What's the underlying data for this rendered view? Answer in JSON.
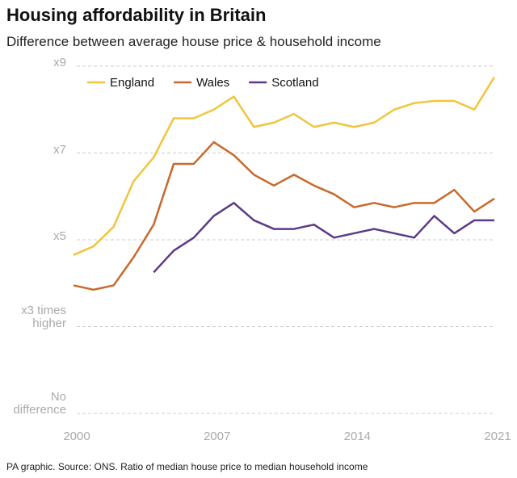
{
  "chart_data": {
    "type": "line",
    "title": "Housing affordability in Britain",
    "subtitle": "Difference between average house price & household income",
    "source": "PA graphic. Source: ONS. Ratio of median house price to median household income",
    "x": [
      2000,
      2001,
      2002,
      2003,
      2004,
      2005,
      2006,
      2007,
      2008,
      2009,
      2010,
      2011,
      2012,
      2013,
      2014,
      2015,
      2016,
      2017,
      2018,
      2019,
      2020,
      2021
    ],
    "series": [
      {
        "name": "England",
        "color": "#f0c53d",
        "values": [
          4.65,
          4.85,
          5.3,
          6.35,
          6.9,
          7.8,
          7.8,
          8.0,
          8.3,
          7.6,
          7.7,
          7.9,
          7.6,
          7.7,
          7.6,
          7.7,
          8.0,
          8.15,
          8.2,
          8.2,
          8.0,
          8.75
        ]
      },
      {
        "name": "Wales",
        "color": "#c9692b",
        "values": [
          3.95,
          3.85,
          3.95,
          4.6,
          5.35,
          6.75,
          6.75,
          7.25,
          6.95,
          6.5,
          6.25,
          6.5,
          6.25,
          6.05,
          5.75,
          5.85,
          5.75,
          5.85,
          5.85,
          6.15,
          5.65,
          5.95
        ]
      },
      {
        "name": "Scotland",
        "color": "#5b3a87",
        "values": [
          null,
          null,
          null,
          null,
          4.25,
          4.75,
          5.05,
          5.55,
          5.85,
          5.45,
          5.25,
          5.25,
          5.35,
          5.05,
          5.15,
          5.25,
          5.15,
          5.05,
          5.55,
          5.15,
          5.45,
          5.45
        ]
      }
    ],
    "xlim": [
      2000,
      2021
    ],
    "xticks": [
      2000,
      2007,
      2014,
      2021
    ],
    "ylim": [
      1,
      9
    ],
    "yticks": [
      {
        "value": 9,
        "label": "x9"
      },
      {
        "value": 7,
        "label": "x7"
      },
      {
        "value": 5,
        "label": "x5"
      },
      {
        "value": 3,
        "label": "x3 times higher"
      },
      {
        "value": 1,
        "label": "No difference"
      }
    ],
    "grid": true,
    "legend": "top-left"
  }
}
